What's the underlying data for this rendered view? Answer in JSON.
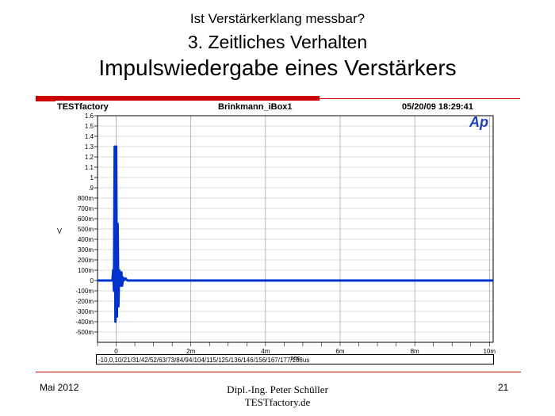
{
  "slide": {
    "title_line1": "Ist Verstärkerklang messbar?",
    "title_line2": "3. Zeitliches Verhalten",
    "title_line3": "Impulswiedergabe eines Verstärkers"
  },
  "plot_header": {
    "left": "TESTfactory",
    "center": "Brinkmann_iBox1",
    "right": "05/20/09 18:29:41",
    "logo": "Ap"
  },
  "chart_data": {
    "type": "line",
    "title": "",
    "xlabel": "sec",
    "ylabel": "V",
    "xlim": [
      -0.0005,
      0.0101
    ],
    "ylim": [
      -0.6,
      1.6
    ],
    "x_ticks": [
      0,
      0.002,
      0.004,
      0.006,
      0.008,
      0.01
    ],
    "x_tick_labels": [
      "0",
      "2m",
      "4m",
      "6m",
      "8m",
      "10m"
    ],
    "y_ticks": [
      1.6,
      1.5,
      1.4,
      1.3,
      1.2,
      1.1,
      1.0,
      0.9,
      0.8,
      0.7,
      0.6,
      0.5,
      0.4,
      0.3,
      0.2,
      0.1,
      0,
      -0.1,
      -0.2,
      -0.3,
      -0.4,
      -0.5
    ],
    "y_tick_labels": [
      "1.6",
      "1.5",
      "1.4",
      "1.3",
      "1.2",
      "1.1",
      "1",
      ".9",
      "800m",
      "700m",
      "600m",
      "500m",
      "400m",
      "300m",
      "200m",
      "100m",
      "0",
      "-100m",
      "-200m",
      "-300m",
      "-400m",
      "-500m"
    ],
    "grid": true,
    "series": [
      {
        "color": "#0033cc",
        "x": [
          -0.0005,
          -0.0001,
          -8e-05,
          -6e-05,
          -4e-05,
          -2e-05,
          0.0,
          2e-05,
          4e-05,
          6e-05,
          8e-05,
          0.0001,
          0.00012,
          0.00014,
          0.00016,
          0.00018,
          0.0002,
          0.00025,
          0.0003,
          0.0004,
          0.0006,
          0.001,
          0.0101
        ],
        "y": [
          0.0,
          0.0,
          0.1,
          -0.1,
          1.3,
          -0.4,
          1.3,
          -0.35,
          0.55,
          -0.25,
          0.1,
          0.05,
          -0.05,
          0.08,
          -0.05,
          0.03,
          0.0,
          0.02,
          0.0,
          0.0,
          0.0,
          0.0,
          0.0
        ]
      }
    ]
  },
  "legend_text": "-10,0,10/21/31/42/52/63/73/84/94/104/115/125/136/146/156/167/177/188us",
  "footer": {
    "date": "Mai 2012",
    "author_line1": "Dipl.-Ing. Peter Schüller",
    "author_line2": "TESTfactory.de",
    "page": "21"
  }
}
